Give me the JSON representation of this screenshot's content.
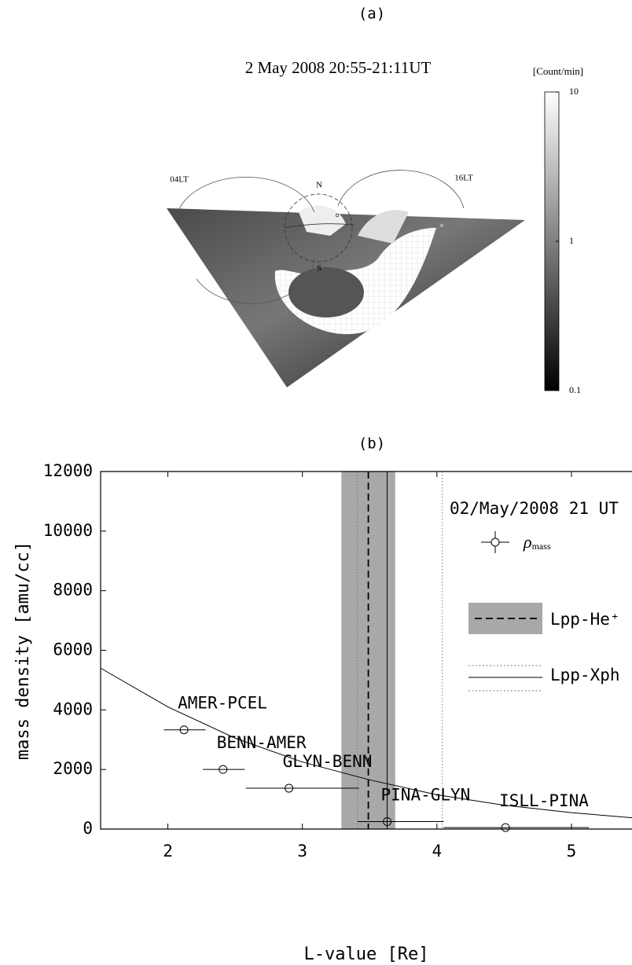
{
  "chart_data": [
    {
      "type": "map",
      "title": "(a)",
      "subtitle": "2 May 2008 20:55-21:11UT",
      "map_labels": [
        "04LT",
        "16LT",
        "N",
        "S"
      ],
      "colorbar": {
        "label": "[Count/min]",
        "clim": [
          0.1,
          10
        ],
        "cticks": [
          0.1,
          1,
          10
        ],
        "log": true
      }
    },
    {
      "type": "scatter",
      "title": "(b)",
      "xlabel": "L-value [Re]",
      "ylabel": "mass density [amu/cc]",
      "annotation": "02/May/2008 21 UT",
      "xlim": [
        1.5,
        5.45
      ],
      "ylim": [
        0,
        12000
      ],
      "xticks": [
        2,
        3,
        4,
        5
      ],
      "yticks": [
        0,
        2000,
        4000,
        6000,
        8000,
        10000,
        12000
      ],
      "series": [
        {
          "name": {
            "symbol": "ρ",
            "subscript": "mass"
          },
          "color": "#000000",
          "point_labels": [
            "AMER-PCEL",
            "BENN-AMER",
            "GLYN-BENN",
            "PINA-GLYN",
            "ISLL-PINA"
          ],
          "x": [
            2.12,
            2.41,
            2.9,
            3.63,
            4.51
          ],
          "values": [
            3330,
            2000,
            1370,
            250,
            50
          ],
          "xerr_minus": [
            0.15,
            0.15,
            0.32,
            0.22,
            0.46
          ],
          "xerr_plus": [
            0.16,
            0.16,
            0.52,
            0.42,
            0.62
          ]
        }
      ],
      "fit": {
        "color": "#000000",
        "x": [
          1.5,
          2,
          2.5,
          3,
          3.5,
          4,
          4.5,
          5,
          5.45
        ],
        "values": [
          5400,
          4100,
          3050,
          2250,
          1650,
          1150,
          800,
          550,
          380
        ]
      },
      "lpp_he": {
        "name": "Lpp-He⁺",
        "x": 3.49,
        "range": [
          3.29,
          3.69
        ],
        "band_color": "#a8a8a8"
      },
      "lpp_xph": {
        "name": "Lpp-Xph",
        "x": 3.63,
        "range": [
          3.41,
          4.04
        ]
      }
    }
  ]
}
